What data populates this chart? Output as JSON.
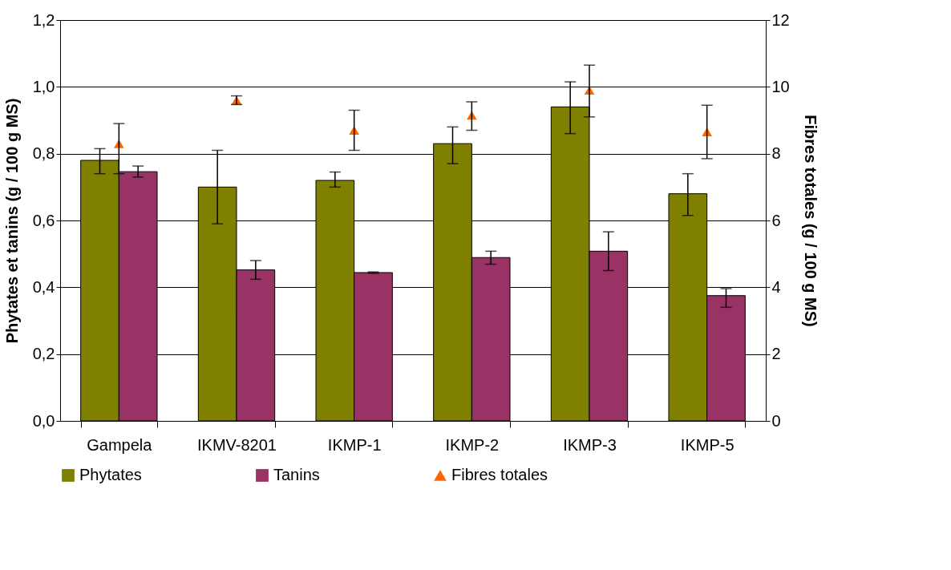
{
  "chart_data": {
    "type": "bar",
    "categories": [
      "Gampela",
      "IKMV-8201",
      "IKMP-1",
      "IKMP-2",
      "IKMP-3",
      "IKMP-5"
    ],
    "ylabel": "Phytates et tanins (g / 100 g MS)",
    "y2label": "Fibres totales (g / 100 g MS)",
    "ylim": [
      0,
      1.2
    ],
    "yticks": [
      {
        "value": 0,
        "label": "0,0"
      },
      {
        "value": 0.2,
        "label": "0,2"
      },
      {
        "value": 0.4,
        "label": "0,4"
      },
      {
        "value": 0.6,
        "label": "0,6"
      },
      {
        "value": 0.8,
        "label": "0,8"
      },
      {
        "value": 1.0,
        "label": "1,0"
      },
      {
        "value": 1.2,
        "label": "1,2"
      }
    ],
    "y2lim": [
      0,
      12
    ],
    "y2ticks": [
      0,
      2,
      4,
      6,
      8,
      10,
      12
    ],
    "grid": "y",
    "legend": "bottom",
    "series": [
      {
        "name": "Phytates",
        "color": "#808000",
        "values": [
          0.78,
          0.7,
          0.72,
          0.83,
          0.94,
          0.68
        ],
        "errors": [
          [
            0.74,
            0.815
          ],
          [
            0.59,
            0.81
          ],
          [
            0.7,
            0.745
          ],
          [
            0.77,
            0.88
          ],
          [
            0.86,
            1.015
          ],
          [
            0.615,
            0.74
          ]
        ]
      },
      {
        "name": "Tanins",
        "color": "#993366",
        "values": [
          0.746,
          0.452,
          0.444,
          0.489,
          0.508,
          0.375
        ],
        "errors": [
          [
            0.73,
            0.763
          ],
          [
            0.424,
            0.48
          ],
          [
            0.442,
            0.446
          ],
          [
            0.469,
            0.508
          ],
          [
            0.45,
            0.566
          ],
          [
            0.34,
            0.396
          ]
        ]
      },
      {
        "name": "Fibres totales",
        "type": "scatter",
        "axis": "y2",
        "marker": "triangle",
        "color": "#ff6600",
        "values": [
          8.3,
          9.6,
          8.7,
          9.15,
          9.9,
          8.65
        ],
        "errors": [
          [
            7.4,
            8.9
          ],
          [
            9.47,
            9.73
          ],
          [
            8.1,
            9.3
          ],
          [
            8.7,
            9.55
          ],
          [
            9.1,
            10.65
          ],
          [
            7.85,
            9.45
          ]
        ]
      }
    ]
  }
}
